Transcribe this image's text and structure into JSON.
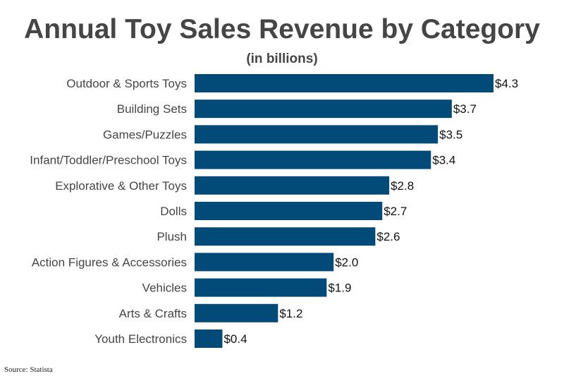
{
  "chart_data": {
    "type": "bar",
    "orientation": "horizontal",
    "title": "Annual Toy Sales Revenue by Category",
    "subtitle": "(in billions)",
    "categories": [
      "Outdoor & Sports Toys",
      "Building Sets",
      "Games/Puzzles",
      "Infant/Toddler/Preschool Toys",
      "Explorative & Other Toys",
      "Dolls",
      "Plush",
      "Action Figures & Accessories",
      "Vehicles",
      "Arts & Crafts",
      "Youth Electronics"
    ],
    "values": [
      4.3,
      3.7,
      3.5,
      3.4,
      2.8,
      2.7,
      2.6,
      2.0,
      1.9,
      1.2,
      0.4
    ],
    "data_labels": [
      "$4.3",
      "$3.7",
      "$3.5",
      "$3.4",
      "$2.8",
      "$2.7",
      "$2.6",
      "$2.0",
      "$1.9",
      "$1.2",
      "$0.4"
    ],
    "xlabel": "",
    "ylabel": "",
    "xlim": [
      0,
      4.3
    ],
    "grid": false,
    "bar_color": "#024a77"
  },
  "source": "Source: Statista"
}
